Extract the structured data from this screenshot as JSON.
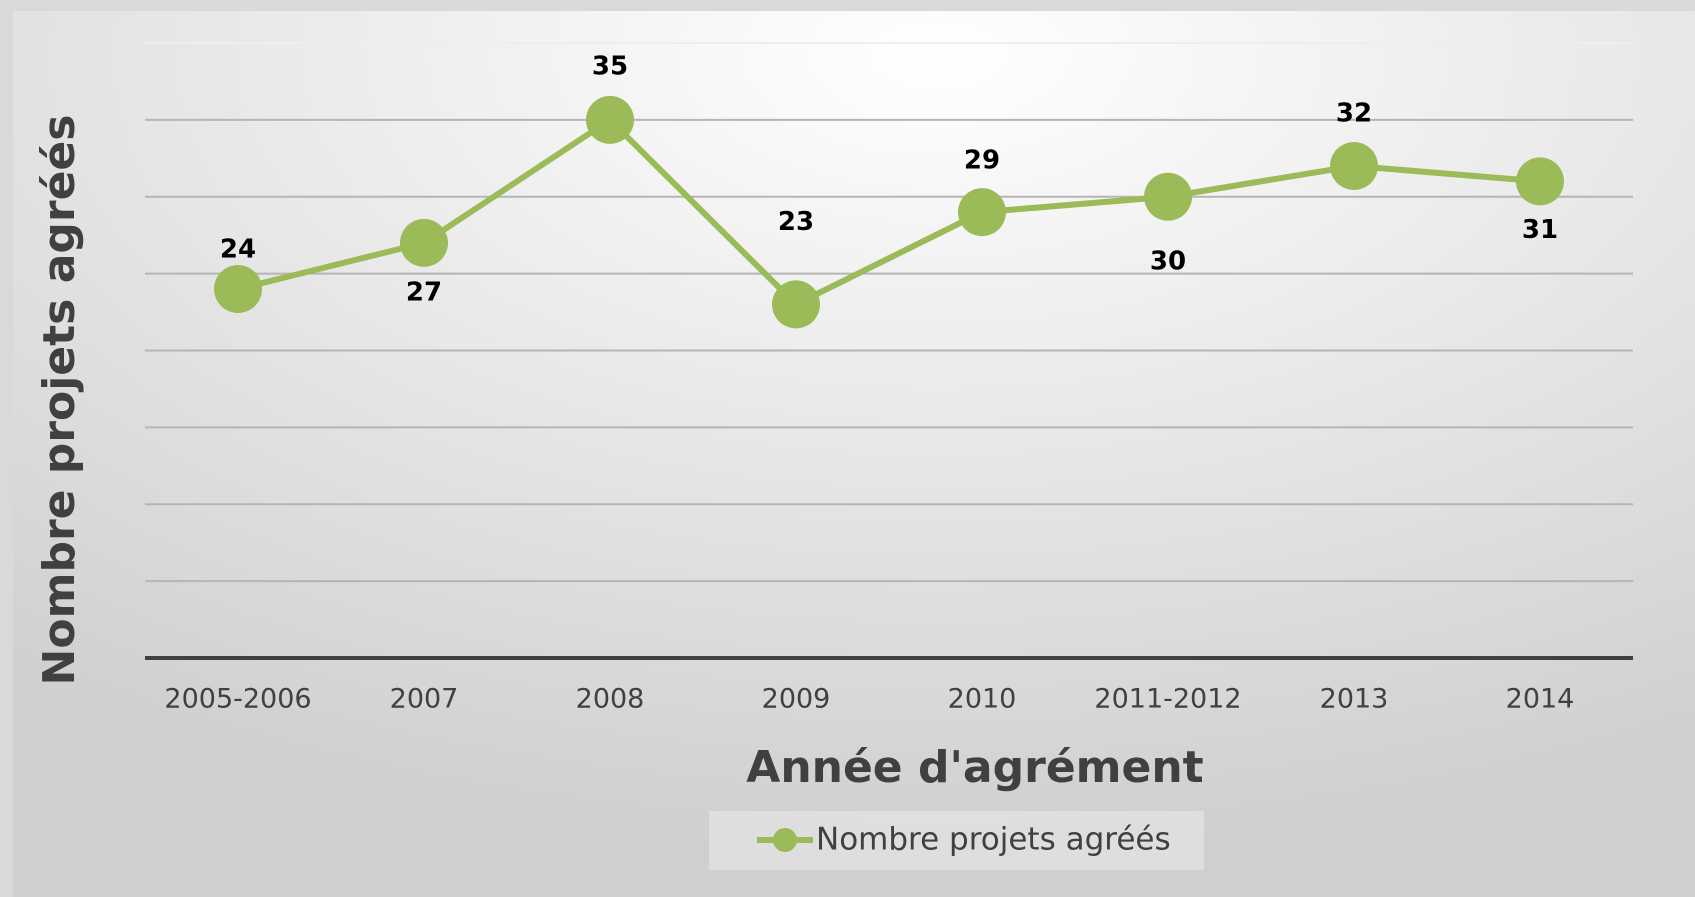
{
  "chart_data": {
    "type": "line",
    "x_label": "Année d'agrément",
    "y_label": "Nombre projets agréés",
    "categories": [
      "2005-2006",
      "2007",
      "2008",
      "2009",
      "2010",
      "2011-2012",
      "2013",
      "2014"
    ],
    "series": [
      {
        "name": "Nombre projets agréés",
        "color": "#9bbb59",
        "values": [
          24,
          27,
          35,
          23,
          29,
          30,
          32,
          31
        ]
      }
    ],
    "ylim": [
      0,
      40
    ],
    "yticks": [
      0,
      5,
      10,
      15,
      20,
      25,
      30,
      35,
      40
    ],
    "grid": true,
    "legend": "bottom"
  }
}
